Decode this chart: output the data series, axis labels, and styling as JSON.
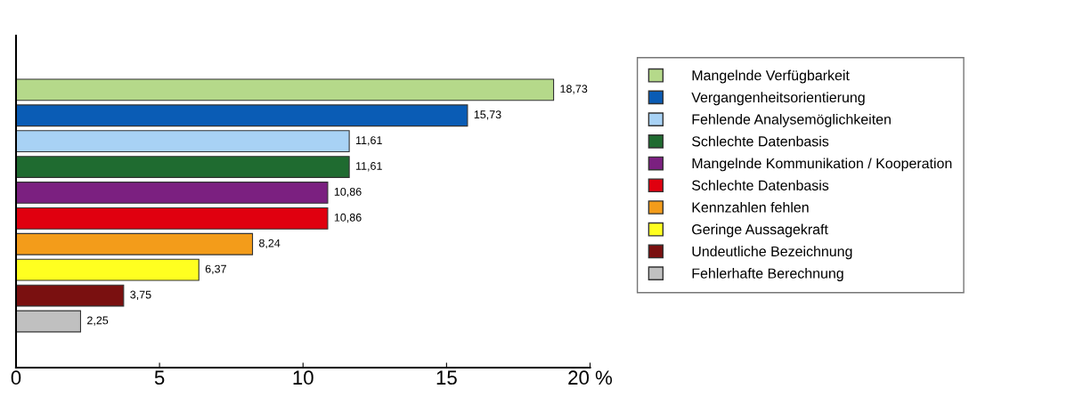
{
  "chart_data": {
    "type": "bar",
    "orientation": "horizontal",
    "stacked": true,
    "categories": [
      null,
      null,
      null,
      null,
      null,
      null,
      null,
      null,
      null,
      null
    ],
    "series": [
      {
        "name": "Mangelnde Verfügbarkeit",
        "color": "#b5d98a",
        "values": [
          18.73,
          null,
          null,
          null,
          null,
          null,
          null,
          null,
          null,
          null
        ],
        "value_labels": [
          "18,73",
          null,
          null,
          null,
          null,
          null,
          null,
          null,
          null,
          null
        ]
      },
      {
        "name": "Vergangenheitsorientierung",
        "color": "#0a5cb5",
        "values": [
          null,
          15.73,
          null,
          null,
          null,
          null,
          null,
          null,
          null,
          null
        ],
        "value_labels": [
          null,
          "15,73",
          null,
          null,
          null,
          null,
          null,
          null,
          null,
          null
        ]
      },
      {
        "name": "Fehlende Analysemöglichkeiten",
        "color": "#a8d2f5",
        "values": [
          null,
          null,
          11.61,
          null,
          null,
          null,
          null,
          null,
          null,
          null
        ],
        "value_labels": [
          null,
          null,
          "11,61",
          null,
          null,
          null,
          null,
          null,
          null,
          null
        ]
      },
      {
        "name": "Schlechte Datenbasis",
        "color": "#1f6b30",
        "values": [
          null,
          null,
          null,
          11.61,
          null,
          null,
          null,
          null,
          null,
          null
        ],
        "value_labels": [
          null,
          null,
          null,
          "11,61",
          null,
          null,
          null,
          null,
          null,
          null
        ]
      },
      {
        "name": "Mangelnde Kommunikation / Kooperation",
        "color": "#7b2080",
        "values": [
          null,
          null,
          null,
          null,
          10.86,
          null,
          null,
          null,
          null,
          null
        ],
        "value_labels": [
          null,
          null,
          null,
          null,
          "10,86",
          null,
          null,
          null,
          null,
          null
        ]
      },
      {
        "name": "Schlechte Datenbasis",
        "color": "#e0000f",
        "values": [
          null,
          null,
          null,
          null,
          null,
          10.86,
          null,
          null,
          null,
          null
        ],
        "value_labels": [
          null,
          null,
          null,
          null,
          null,
          "10,86",
          null,
          null,
          null,
          null
        ]
      },
      {
        "name": "Kennzahlen fehlen",
        "color": "#f39c1a",
        "values": [
          null,
          null,
          null,
          null,
          null,
          null,
          8.24,
          null,
          null,
          null
        ],
        "value_labels": [
          null,
          null,
          null,
          null,
          null,
          null,
          "8,24",
          null,
          null,
          null
        ]
      },
      {
        "name": "Geringe Aussagekraft",
        "color": "#ffff20",
        "values": [
          null,
          null,
          null,
          null,
          null,
          null,
          null,
          6.37,
          null,
          null
        ],
        "value_labels": [
          null,
          null,
          null,
          null,
          null,
          null,
          null,
          "6,37",
          null,
          null
        ]
      },
      {
        "name": "Undeutliche Bezeichnung",
        "color": "#7a1010",
        "values": [
          null,
          null,
          null,
          null,
          null,
          null,
          null,
          null,
          3.75,
          null
        ],
        "value_labels": [
          null,
          null,
          null,
          null,
          null,
          null,
          null,
          null,
          "3,75",
          null
        ]
      },
      {
        "name": "Fehlerhafte Berechnung",
        "color": "#c0c0c0",
        "values": [
          null,
          null,
          null,
          null,
          null,
          null,
          null,
          null,
          null,
          2.25
        ],
        "value_labels": [
          null,
          null,
          null,
          null,
          null,
          null,
          null,
          null,
          null,
          "2,25"
        ]
      }
    ],
    "xlim": [
      0,
      20
    ],
    "xticks": [
      0,
      5,
      10,
      15,
      {
        "value": 20,
        "label": "20 %"
      }
    ],
    "legend": "right",
    "grid": false
  }
}
